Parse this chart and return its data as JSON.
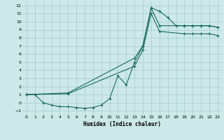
{
  "bg_color": "#cce8e8",
  "grid_color": "#aacfcf",
  "line_color": "#1a6b5e",
  "xlabel": "Humidex (Indice chaleur)",
  "xlim": [
    -0.5,
    23.5
  ],
  "ylim": [
    -1.5,
    12.5
  ],
  "xticks": [
    0,
    1,
    2,
    3,
    4,
    5,
    6,
    7,
    8,
    9,
    10,
    11,
    12,
    13,
    14,
    15,
    16,
    17,
    18,
    19,
    20,
    21,
    22,
    23
  ],
  "yticks": [
    -1,
    0,
    1,
    2,
    3,
    4,
    5,
    6,
    7,
    8,
    9,
    10,
    11,
    12
  ],
  "curve1_x": [
    0,
    1,
    2,
    3,
    4,
    5,
    6,
    7,
    8,
    9,
    10,
    11,
    12,
    13,
    14,
    15,
    16,
    17,
    18,
    19,
    20,
    21,
    22,
    23
  ],
  "curve1_y": [
    1.0,
    1.0,
    0.0,
    -0.3,
    -0.5,
    -0.5,
    -0.6,
    -0.7,
    -0.6,
    -0.3,
    0.5,
    3.3,
    2.2,
    5.0,
    7.0,
    11.7,
    11.3,
    10.5,
    9.5,
    9.5,
    9.5,
    9.5,
    9.5,
    9.3
  ],
  "curve2_x": [
    0,
    5,
    13,
    14,
    15,
    16,
    19,
    20,
    21,
    22,
    23
  ],
  "curve2_y": [
    1.0,
    1.2,
    5.5,
    7.0,
    11.7,
    9.5,
    9.5,
    9.5,
    9.5,
    9.5,
    9.3
  ],
  "curve3_x": [
    0,
    5,
    13,
    14,
    15,
    16,
    19,
    20,
    21,
    22,
    23
  ],
  "curve3_y": [
    1.0,
    1.1,
    4.5,
    6.5,
    11.0,
    8.8,
    8.5,
    8.5,
    8.5,
    8.5,
    8.3
  ]
}
